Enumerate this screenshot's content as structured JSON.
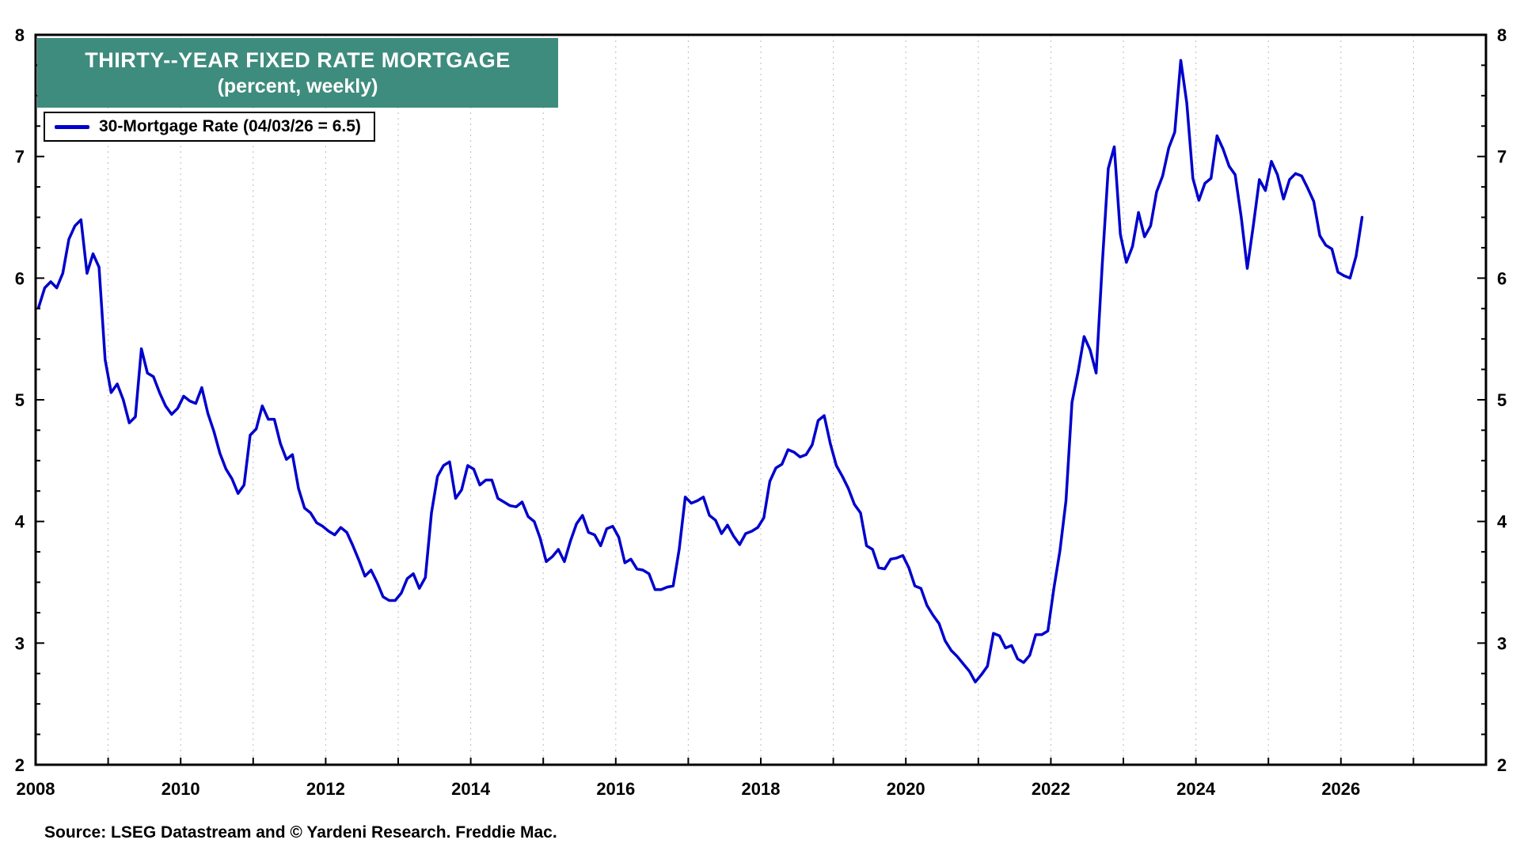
{
  "header": {
    "title": "THIRTY--YEAR FIXED RATE MORTGAGE",
    "subtitle": "(percent, weekly)"
  },
  "legend": {
    "label": "30-Mortgage Rate (04/03/26 = 6.5)"
  },
  "source": "Source: LSEG Datastream and © Yardeni Research. Freddie Mac.",
  "colors": {
    "title_background": "#3E8C7D",
    "line": "#0000CD",
    "axis": "#000000",
    "grid": "#bbbbbb"
  },
  "chart_data": {
    "type": "line",
    "title": "THIRTY--YEAR FIXED RATE MORTGAGE",
    "subtitle": "(percent, weekly)",
    "xlabel": "",
    "ylabel": "percent",
    "x_range": [
      2008,
      2028
    ],
    "ylim": [
      2,
      8
    ],
    "x_ticks": [
      2008,
      2010,
      2012,
      2014,
      2016,
      2018,
      2020,
      2022,
      2024,
      2026
    ],
    "y_ticks": [
      2,
      3,
      4,
      5,
      6,
      7,
      8
    ],
    "grid": "vertical-dotted-every-year",
    "legend_position": "top-left",
    "x_start_year": 2008,
    "points_per_year": 12,
    "last_point": {
      "date": "04/03/26",
      "value": 6.5
    },
    "series": [
      {
        "name": "30-Mortgage Rate",
        "color": "#0000CD",
        "values": [
          5.76,
          5.92,
          5.97,
          5.92,
          6.04,
          6.32,
          6.43,
          6.48,
          6.04,
          6.2,
          6.09,
          5.33,
          5.06,
          5.13,
          5.0,
          4.81,
          4.86,
          5.42,
          5.22,
          5.19,
          5.06,
          4.95,
          4.88,
          4.93,
          5.03,
          4.99,
          4.97,
          5.1,
          4.89,
          4.74,
          4.56,
          4.43,
          4.35,
          4.23,
          4.3,
          4.71,
          4.76,
          4.95,
          4.84,
          4.84,
          4.64,
          4.51,
          4.55,
          4.27,
          4.11,
          4.07,
          3.99,
          3.96,
          3.92,
          3.89,
          3.95,
          3.91,
          3.8,
          3.68,
          3.55,
          3.6,
          3.5,
          3.38,
          3.35,
          3.35,
          3.41,
          3.53,
          3.57,
          3.45,
          3.54,
          4.07,
          4.37,
          4.46,
          4.49,
          4.19,
          4.26,
          4.46,
          4.43,
          4.3,
          4.34,
          4.34,
          4.19,
          4.16,
          4.13,
          4.12,
          4.16,
          4.04,
          4.0,
          3.86,
          3.67,
          3.71,
          3.77,
          3.67,
          3.84,
          3.98,
          4.05,
          3.91,
          3.89,
          3.8,
          3.94,
          3.96,
          3.87,
          3.66,
          3.69,
          3.61,
          3.6,
          3.57,
          3.44,
          3.44,
          3.46,
          3.47,
          3.77,
          4.2,
          4.15,
          4.17,
          4.2,
          4.05,
          4.01,
          3.9,
          3.97,
          3.88,
          3.81,
          3.9,
          3.92,
          3.95,
          4.03,
          4.33,
          4.44,
          4.47,
          4.59,
          4.57,
          4.53,
          4.55,
          4.63,
          4.83,
          4.87,
          4.64,
          4.46,
          4.37,
          4.27,
          4.14,
          4.07,
          3.8,
          3.77,
          3.62,
          3.61,
          3.69,
          3.7,
          3.72,
          3.62,
          3.47,
          3.45,
          3.31,
          3.23,
          3.16,
          3.02,
          2.94,
          2.89,
          2.83,
          2.77,
          2.68,
          2.74,
          2.81,
          3.08,
          3.06,
          2.96,
          2.98,
          2.87,
          2.84,
          2.9,
          3.07,
          3.07,
          3.1,
          3.45,
          3.76,
          4.17,
          4.98,
          5.23,
          5.52,
          5.41,
          5.22,
          6.11,
          6.9,
          7.08,
          6.36,
          6.13,
          6.26,
          6.54,
          6.34,
          6.43,
          6.71,
          6.84,
          7.07,
          7.2,
          7.79,
          7.44,
          6.82,
          6.64,
          6.78,
          6.82,
          7.17,
          7.06,
          6.92,
          6.85,
          6.5,
          6.08,
          6.43,
          6.81,
          6.72,
          6.96,
          6.85,
          6.65,
          6.81,
          6.86,
          6.84,
          6.74,
          6.63,
          6.35,
          6.27,
          6.24,
          6.05,
          6.02,
          6.0,
          6.18,
          6.5
        ]
      }
    ]
  }
}
